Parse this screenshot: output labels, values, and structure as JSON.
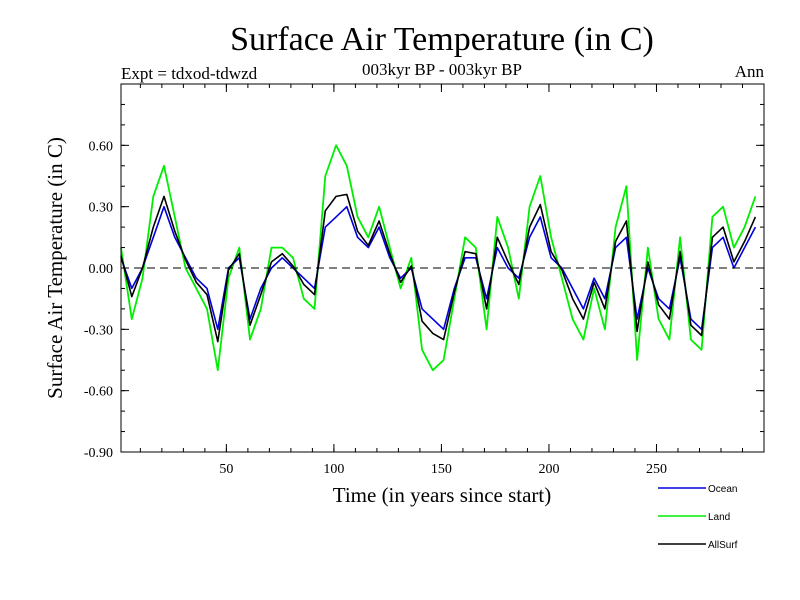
{
  "chart_data": {
    "type": "line",
    "title": "Surface Air Temperature (in C)",
    "subtitle": "003kyr BP - 003kyr BP",
    "left_label": "Expt = tdxod-tdwzd",
    "right_label": "Ann",
    "xlabel": "Time (in years since start)",
    "ylabel": "Surface Air Temperature (in C)",
    "xlim": [
      1,
      300
    ],
    "ylim": [
      -0.9,
      0.9
    ],
    "x_ticks": [
      50,
      100,
      150,
      200,
      250
    ],
    "y_ticks": [
      -0.9,
      -0.6,
      -0.3,
      0.0,
      0.3,
      0.6
    ],
    "y_tick_labels": [
      "-0.90",
      "-0.60",
      "-0.30",
      "0.00",
      "0.30",
      "0.60"
    ],
    "zero_line": true,
    "grid": false,
    "legend_position": "bottom-right",
    "series": [
      {
        "name": "Ocean",
        "color": "#0000dd",
        "x_start": 1,
        "x_step": 5,
        "values": [
          0.05,
          -0.1,
          0.0,
          0.15,
          0.3,
          0.15,
          0.05,
          -0.05,
          -0.1,
          -0.3,
          0.0,
          0.05,
          -0.25,
          -0.1,
          0.0,
          0.05,
          0.0,
          -0.05,
          -0.1,
          0.2,
          0.25,
          0.3,
          0.15,
          0.1,
          0.2,
          0.05,
          -0.05,
          0.0,
          -0.2,
          -0.25,
          -0.3,
          -0.1,
          0.05,
          0.05,
          -0.15,
          0.1,
          0.0,
          -0.05,
          0.15,
          0.25,
          0.05,
          0.0,
          -0.1,
          -0.2,
          -0.05,
          -0.15,
          0.1,
          0.15,
          -0.25,
          0.0,
          -0.15,
          -0.2,
          0.05,
          -0.25,
          -0.3,
          0.1,
          0.15,
          0.0,
          0.1,
          0.2
        ]
      },
      {
        "name": "Land",
        "color": "#00ee00",
        "x_start": 1,
        "x_step": 5,
        "values": [
          0.1,
          -0.25,
          -0.05,
          0.35,
          0.5,
          0.25,
          0.0,
          -0.1,
          -0.2,
          -0.5,
          -0.05,
          0.1,
          -0.35,
          -0.2,
          0.1,
          0.1,
          0.05,
          -0.15,
          -0.2,
          0.45,
          0.6,
          0.5,
          0.25,
          0.15,
          0.3,
          0.1,
          -0.1,
          0.05,
          -0.4,
          -0.5,
          -0.45,
          -0.15,
          0.15,
          0.1,
          -0.3,
          0.25,
          0.1,
          -0.15,
          0.3,
          0.45,
          0.15,
          -0.05,
          -0.25,
          -0.35,
          -0.1,
          -0.3,
          0.2,
          0.4,
          -0.45,
          0.1,
          -0.25,
          -0.35,
          0.15,
          -0.35,
          -0.4,
          0.25,
          0.3,
          0.1,
          0.2,
          0.35
        ]
      },
      {
        "name": "AllSurf",
        "color": "#000000",
        "x_start": 1,
        "x_step": 5,
        "values": [
          0.06,
          -0.14,
          0.0,
          0.2,
          0.35,
          0.18,
          0.04,
          -0.07,
          -0.13,
          -0.36,
          -0.01,
          0.07,
          -0.28,
          -0.13,
          0.03,
          0.07,
          0.01,
          -0.08,
          -0.13,
          0.28,
          0.35,
          0.36,
          0.18,
          0.11,
          0.23,
          0.07,
          -0.07,
          0.01,
          -0.26,
          -0.32,
          -0.35,
          -0.12,
          0.08,
          0.07,
          -0.2,
          0.15,
          0.03,
          -0.08,
          0.2,
          0.31,
          0.08,
          -0.01,
          -0.15,
          -0.25,
          -0.07,
          -0.2,
          0.13,
          0.23,
          -0.31,
          0.03,
          -0.18,
          -0.25,
          0.08,
          -0.28,
          -0.33,
          0.15,
          0.2,
          0.03,
          0.13,
          0.25
        ]
      }
    ]
  }
}
